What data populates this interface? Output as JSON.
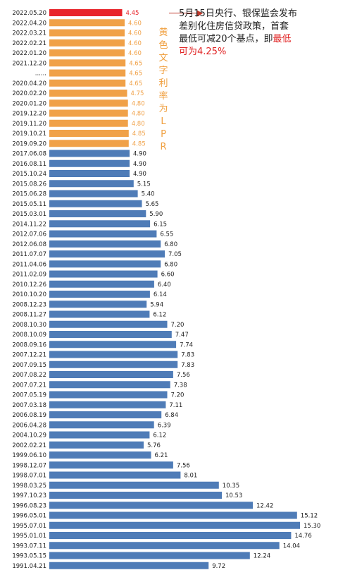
{
  "chart_data": {
    "type": "bar",
    "orientation": "horizontal",
    "categories": [
      "2022.05.20",
      "2022.04.20",
      "2022.03.21",
      "2022.02.21",
      "2022.01.20",
      "2021.12.20",
      "......",
      "2020.04.20",
      "2020.02.20",
      "2020.01.20",
      "2019.12.20",
      "2019.11.20",
      "2019.10.21",
      "2019.09.20",
      "2017.06.08",
      "2016.08.11",
      "2015.10.24",
      "2015.08.26",
      "2015.06.28",
      "2015.05.11",
      "2015.03.01",
      "2014.11.22",
      "2012.07.06",
      "2012.06.08",
      "2011.07.07",
      "2011.04.06",
      "2011.02.09",
      "2010.12.26",
      "2010.10.20",
      "2008.12.23",
      "2008.11.27",
      "2008.10.30",
      "2008.10.09",
      "2008.09.16",
      "2007.12.21",
      "2007.09.15",
      "2007.08.22",
      "2007.07.21",
      "2007.05.19",
      "2007.03.18",
      "2006.08.19",
      "2006.04.28",
      "2004.10.29",
      "2002.02.21",
      "1999.06.10",
      "1998.12.07",
      "1998.07.01",
      "1998.03.25",
      "1997.10.23",
      "1996.08.23",
      "1996.05.01",
      "1995.07.01",
      "1995.01.01",
      "1993.07.11",
      "1993.05.15",
      "1991.04.21"
    ],
    "values": [
      4.45,
      4.6,
      4.6,
      4.6,
      4.6,
      4.65,
      4.65,
      4.65,
      4.75,
      4.8,
      4.8,
      4.8,
      4.85,
      4.85,
      4.9,
      4.9,
      4.9,
      5.15,
      5.4,
      5.65,
      5.9,
      6.15,
      6.55,
      6.8,
      7.05,
      6.8,
      6.6,
      6.4,
      6.14,
      5.94,
      6.12,
      7.2,
      7.47,
      7.74,
      7.83,
      7.83,
      7.56,
      7.38,
      7.2,
      7.11,
      6.84,
      6.39,
      6.12,
      5.76,
      6.21,
      7.56,
      8.01,
      10.35,
      10.53,
      12.42,
      15.12,
      15.3,
      14.76,
      14.04,
      12.24,
      9.72
    ],
    "value_labels": [
      "4.45",
      "4.60",
      "4.60",
      "4.60",
      "4.60",
      "4.65",
      "4.65",
      "4.65",
      "4.75",
      "4.80",
      "4.80",
      "4.80",
      "4.85",
      "4.85",
      "4.90",
      "4.90",
      "4.90",
      "5.15",
      "5.40",
      "5.65",
      "5.90",
      "6.15",
      "6.55",
      "6.80",
      "7.05",
      "6.80",
      "6.60",
      "6.40",
      "6.14",
      "5.94",
      "6.12",
      "7.20",
      "7.47",
      "7.74",
      "7.83",
      "7.83",
      "7.56",
      "7.38",
      "7.20",
      "7.11",
      "6.84",
      "6.39",
      "6.12",
      "5.76",
      "6.21",
      "7.56",
      "8.01",
      "10.35",
      "10.53",
      "12.42",
      "15.12",
      "15.30",
      "14.76",
      "14.04",
      "12.24",
      "9.72"
    ],
    "bar_kind": [
      "latest",
      "lpr",
      "lpr",
      "lpr",
      "lpr",
      "lpr",
      "lpr",
      "lpr",
      "lpr",
      "lpr",
      "lpr",
      "lpr",
      "lpr",
      "lpr",
      "base",
      "base",
      "base",
      "base",
      "base",
      "base",
      "base",
      "base",
      "base",
      "base",
      "base",
      "base",
      "base",
      "base",
      "base",
      "base",
      "base",
      "base",
      "base",
      "base",
      "base",
      "base",
      "base",
      "base",
      "base",
      "base",
      "base",
      "base",
      "base",
      "base",
      "base",
      "base",
      "base",
      "base",
      "base",
      "base",
      "base",
      "base",
      "base",
      "base",
      "base",
      "base"
    ],
    "xlim": [
      0,
      15.3
    ],
    "grid": false,
    "colors": {
      "latest": "#e8242a",
      "lpr": "#f0a148",
      "base": "#4f7cb7"
    },
    "value_label_colors": {
      "latest": "#e8242a",
      "lpr": "#f0a148",
      "base": "#222222"
    }
  },
  "annotation": {
    "line1": "5月15日央行、银保监会发布",
    "line2": "差别化住房信贷政策，首套",
    "line3_a": "最低可减20个基点，即",
    "line3_b": "最低",
    "line4": "可为4.25%"
  },
  "vertical_label": [
    "黄",
    "色",
    "文",
    "字",
    "利",
    "率",
    "为",
    "L",
    "P",
    "R"
  ]
}
